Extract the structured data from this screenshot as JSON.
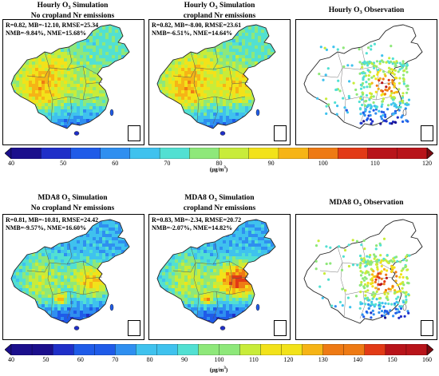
{
  "colors": {
    "scale": [
      "#1b0f8c",
      "#1f2fc8",
      "#1f5be8",
      "#2f8ff0",
      "#3fc2ee",
      "#52e0d2",
      "#8ee87a",
      "#c8ec3a",
      "#f2e21a",
      "#f6b416",
      "#ee7a14",
      "#e23a16",
      "#b8141a",
      "#7a0a10"
    ],
    "map_bg": "#ffffff"
  },
  "row1": {
    "panel_a": {
      "title_prefix": "Hourly O",
      "title_sub": "3",
      "title_suffix": " Simulation",
      "title_line2": "No cropland Nr emissions",
      "stats_line1": "R=0.82, MB=-12.10, RMSE=25.34",
      "stats_line2": "NMB=-9.84%, NME=15.68%"
    },
    "panel_b": {
      "title_prefix": "Hourly O",
      "title_sub": "3",
      "title_suffix": " Simulation",
      "title_line2": "cropland Nr emissions",
      "stats_line1": "R=0.82, MB=-8.00, RMSE=23.61",
      "stats_line2": "NMB=-6.51%, NME=14.64%"
    },
    "panel_c": {
      "title_prefix": "Hourly O",
      "title_sub": "3",
      "title_suffix": " Observation"
    },
    "colorbar": {
      "ticks": [
        "40",
        "50",
        "60",
        "70",
        "80",
        "90",
        "100",
        "110",
        "120"
      ],
      "unit": "(μg/m",
      "unit_sup": "3",
      "unit_end": ")"
    }
  },
  "row2": {
    "panel_a": {
      "title_prefix": "MDA8 O",
      "title_sub": "3",
      "title_suffix": " Simulation",
      "title_line2": "No cropland Nr emissions",
      "stats_line1": "R=0.81, MB=-10.81, RMSE=24.42",
      "stats_line2": "NMB=-9.57%, NME=16.60%"
    },
    "panel_b": {
      "title_prefix": "MDA8 O",
      "title_sub": "3",
      "title_suffix": " Simulation",
      "title_line2": "cropland Nr emissions",
      "stats_line1": "R=0.83, MB=-2.34, RMSE=20.72",
      "stats_line2": "NMB=-2.07%, NME=14.82%"
    },
    "panel_c": {
      "title_prefix": "MDA8 O",
      "title_sub": "3",
      "title_suffix": " Observation"
    },
    "colorbar": {
      "ticks": [
        "40",
        "50",
        "60",
        "70",
        "80",
        "90",
        "100",
        "110",
        "120",
        "130",
        "140",
        "150",
        "160"
      ],
      "unit": "(μg/m",
      "unit_sup": "3",
      "unit_end": ")"
    }
  }
}
